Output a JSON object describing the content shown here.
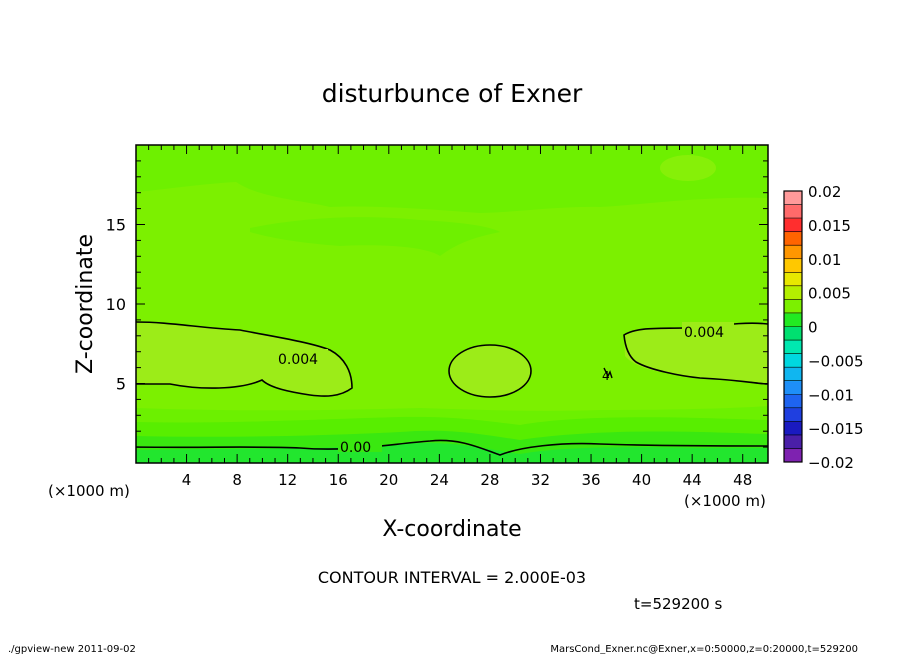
{
  "chart_data": {
    "type": "contour",
    "title": "disturbunce of Exner",
    "xlabel": "X-coordinate",
    "ylabel": "Z-coordinate",
    "x_unit_left": "(×1000 m)",
    "x_unit_right": "(×1000 m)",
    "xlim": [
      0,
      50
    ],
    "ylim": [
      0,
      20
    ],
    "x_ticks": [
      4,
      8,
      12,
      16,
      20,
      24,
      28,
      32,
      36,
      40,
      44,
      48
    ],
    "y_ticks": [
      5,
      10,
      15
    ],
    "contour_labels": [
      "0.004",
      "0.004",
      "0.00",
      "4"
    ],
    "colorbar": {
      "levels": [
        -0.02,
        -0.018,
        -0.016,
        -0.014,
        -0.012,
        -0.01,
        -0.008,
        -0.006,
        -0.004,
        -0.002,
        0,
        0.002,
        0.004,
        0.006,
        0.008,
        0.01,
        0.012,
        0.014,
        0.016,
        0.018,
        0.02
      ],
      "tick_labels": [
        "0.02",
        "0.015",
        "0.01",
        "0.005",
        "0",
        "−0.005",
        "−0.01",
        "−0.015",
        "−0.02"
      ],
      "colors": [
        "#7e22b0",
        "#4a1fa8",
        "#1a1ac0",
        "#1f3fe0",
        "#1e64f0",
        "#1e8ff8",
        "#10b6f0",
        "#00d8e0",
        "#00e8b0",
        "#00e070",
        "#22ea22",
        "#7cf000",
        "#b4f000",
        "#e8e800",
        "#ffc800",
        "#ff9600",
        "#ff6400",
        "#ff2e2e",
        "#ff6a6a",
        "#ff9a9a"
      ]
    },
    "contour_interval": "CONTOUR INTERVAL = 2.000E-03",
    "time": "t=529200 s"
  },
  "footer": {
    "left": "./gpview-new  2011-09-02",
    "right": "MarsCond_Exner.nc@Exner,x=0:50000,z=0:20000,t=529200"
  }
}
